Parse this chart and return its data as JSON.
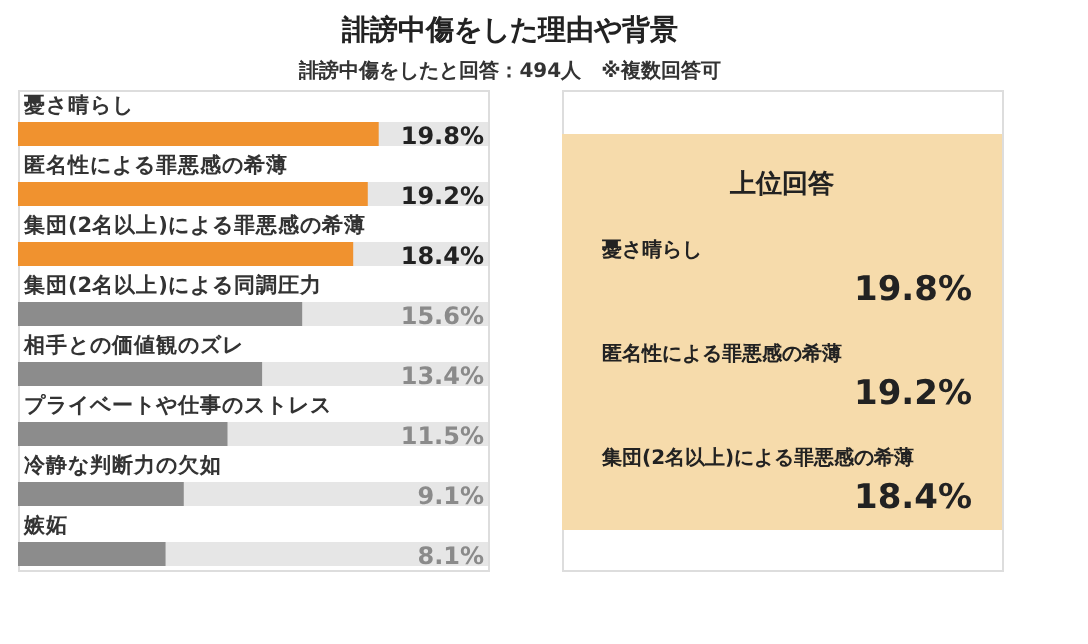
{
  "chart_data": [
    {
      "type": "bar",
      "orientation": "horizontal",
      "title": "誹謗中傷をした理由や背景",
      "subtitle": "誹謗中傷をしたと回答：494人　※複数回答可",
      "categories": [
        "憂さ晴らし",
        "匿名性による罪悪感の希薄",
        "集団(2名以上)による罪悪感の希薄",
        "集団(2名以上)による同調圧力",
        "相手との価値観のズレ",
        "プライベートや仕事のストレス",
        "冷静な判断力の欠如",
        "嫉妬"
      ],
      "values": [
        19.8,
        19.2,
        18.4,
        15.6,
        13.4,
        11.5,
        9.1,
        8.1
      ],
      "colors": [
        "#f0922f",
        "#f0922f",
        "#f0922f",
        "#8c8c8c",
        "#8c8c8c",
        "#8c8c8c",
        "#8c8c8c",
        "#8c8c8c"
      ],
      "value_labels": [
        "19.8%",
        "19.2%",
        "18.4%",
        "15.6%",
        "13.4%",
        "11.5%",
        "9.1%",
        "8.1%"
      ],
      "xlim": [
        0,
        25.8
      ],
      "tick_labels": false
    },
    {
      "type": "other",
      "title": "上位回答",
      "annotations": [
        "憂さ晴らし",
        "19.8%",
        "匿名性による罪悪感の希薄",
        "19.2%",
        "集団(2名以上)による罪悪感の希薄",
        "18.4%"
      ]
    }
  ]
}
